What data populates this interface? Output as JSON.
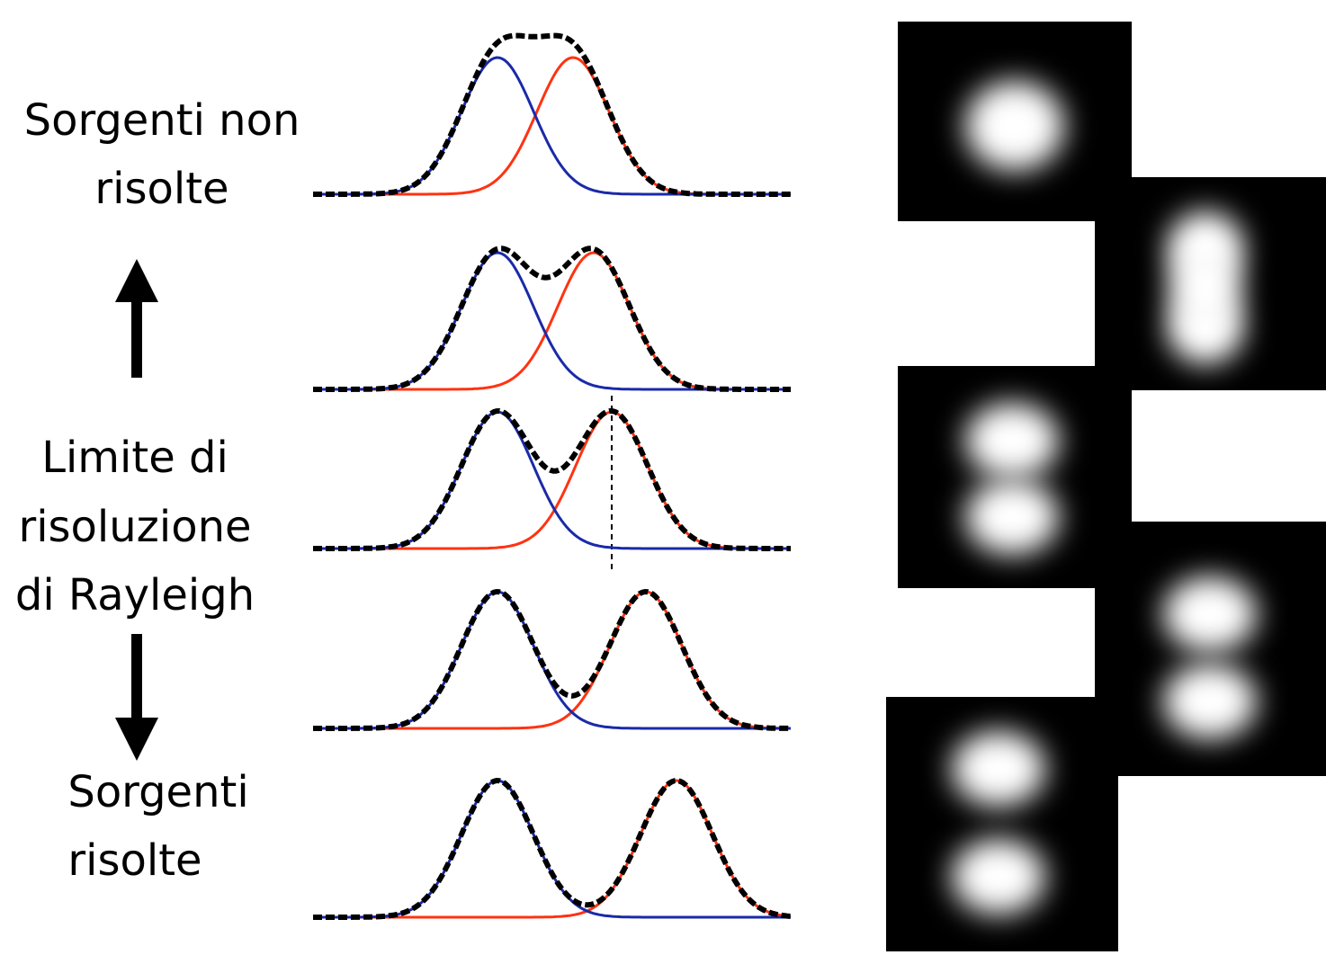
{
  "left_labels": [
    {
      "lines": [
        "Sorgenti non",
        "risolte"
      ]
    },
    {
      "lines": [
        "Limite di",
        "risoluzione",
        "di Rayleigh"
      ]
    },
    {
      "lines": [
        "Sorgenti",
        "risolte"
      ]
    }
  ]
}
